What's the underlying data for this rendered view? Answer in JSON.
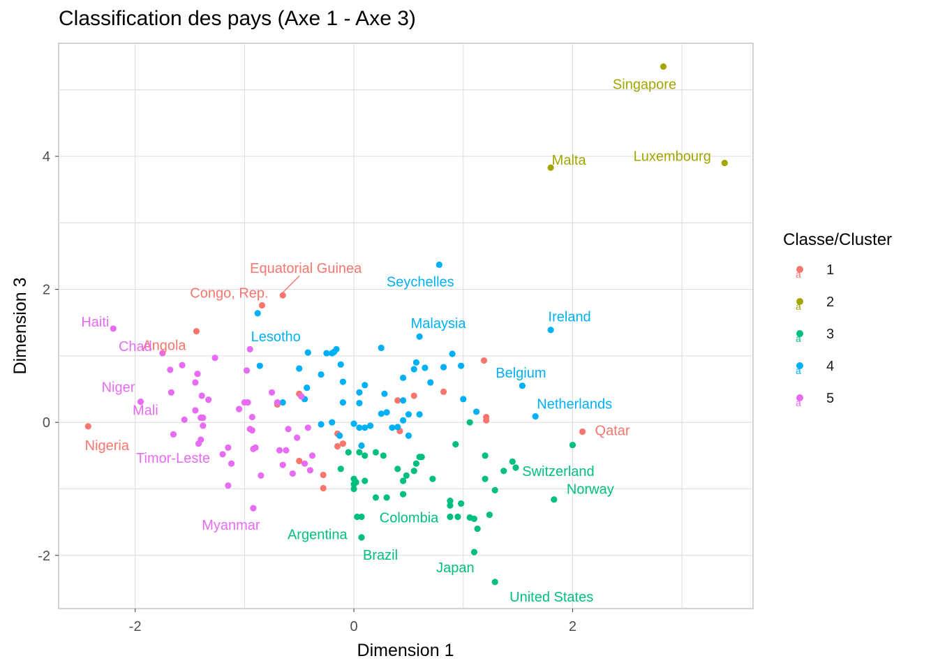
{
  "title": "Classification des pays (Axe 1 - Axe 3)",
  "chart_data": {
    "type": "scatter",
    "xlabel": "Dimension 1",
    "ylabel": "Dimension 3",
    "xlim": [
      -2.7,
      3.65
    ],
    "ylim": [
      -2.8,
      5.7
    ],
    "x_ticks": [
      -2,
      0,
      2
    ],
    "y_ticks": [
      -2,
      0,
      2,
      4
    ],
    "grid": true,
    "legend": {
      "title": "Classe/Cluster",
      "position": "right",
      "entries": [
        {
          "label": "1",
          "color": "#F8766D"
        },
        {
          "label": "2",
          "color": "#A3A500"
        },
        {
          "label": "3",
          "color": "#00BF7D"
        },
        {
          "label": "4",
          "color": "#00B0F6"
        },
        {
          "label": "5",
          "color": "#E76BF3"
        }
      ]
    },
    "series": [
      {
        "name": "1",
        "color": "#F8766D",
        "points": [
          [
            -2.43,
            -0.06
          ],
          [
            -1.44,
            1.37
          ],
          [
            -0.84,
            1.76
          ],
          [
            -0.65,
            1.91
          ],
          [
            -0.7,
            0.27
          ],
          [
            -0.5,
            0.43
          ],
          [
            -0.5,
            -0.58
          ],
          [
            -0.28,
            -0.79
          ],
          [
            -0.28,
            -0.99
          ],
          [
            -0.15,
            -0.17
          ],
          [
            -0.1,
            -0.32
          ],
          [
            -0.15,
            -0.36
          ],
          [
            0.4,
            0.33
          ],
          [
            0.42,
            -0.13
          ],
          [
            0.55,
            0.4
          ],
          [
            0.82,
            0.46
          ],
          [
            1.19,
            0.93
          ],
          [
            1.21,
            0.08
          ],
          [
            1.21,
            0.03
          ],
          [
            2.09,
            -0.14
          ]
        ]
      },
      {
        "name": "2",
        "color": "#A3A500",
        "points": [
          [
            2.83,
            5.35
          ],
          [
            1.8,
            3.83
          ],
          [
            3.39,
            3.9
          ]
        ]
      },
      {
        "name": "3",
        "color": "#00BF7D",
        "points": [
          [
            -0.05,
            -0.45
          ],
          [
            0.05,
            -0.45
          ],
          [
            -0.12,
            -0.7
          ],
          [
            0.0,
            -0.85
          ],
          [
            0.0,
            -0.93
          ],
          [
            0.02,
            -0.9
          ],
          [
            0.1,
            -0.88
          ],
          [
            0.1,
            -0.5
          ],
          [
            0.2,
            -0.45
          ],
          [
            0.27,
            -0.5
          ],
          [
            0.2,
            -1.13
          ],
          [
            0.3,
            -1.13
          ],
          [
            0.03,
            -1.42
          ],
          [
            0.07,
            -1.42
          ],
          [
            0.07,
            -1.73
          ],
          [
            0.0,
            -1.0
          ],
          [
            0.4,
            -0.7
          ],
          [
            0.45,
            -0.88
          ],
          [
            0.48,
            -0.8
          ],
          [
            0.45,
            -1.08
          ],
          [
            0.55,
            -0.73
          ],
          [
            0.57,
            -0.62
          ],
          [
            0.62,
            -0.52
          ],
          [
            0.6,
            -0.52
          ],
          [
            0.72,
            -0.85
          ],
          [
            0.93,
            -0.33
          ],
          [
            1.06,
            0.0
          ],
          [
            1.2,
            -0.5
          ],
          [
            1.2,
            -0.85
          ],
          [
            1.29,
            -1.02
          ],
          [
            1.37,
            -0.73
          ],
          [
            1.45,
            -0.59
          ],
          [
            1.48,
            -0.68
          ],
          [
            0.88,
            -1.18
          ],
          [
            0.88,
            -1.25
          ],
          [
            0.88,
            -1.42
          ],
          [
            0.95,
            -1.42
          ],
          [
            0.98,
            -1.22
          ],
          [
            1.06,
            -1.43
          ],
          [
            1.1,
            -1.45
          ],
          [
            1.13,
            -1.6
          ],
          [
            1.24,
            -1.39
          ],
          [
            1.1,
            -1.95
          ],
          [
            1.29,
            -2.4
          ],
          [
            1.83,
            -1.16
          ],
          [
            2.0,
            -0.34
          ]
        ]
      },
      {
        "name": "4",
        "color": "#00B0F6",
        "points": [
          [
            -0.88,
            1.64
          ],
          [
            -0.86,
            0.85
          ],
          [
            -0.65,
            0.3
          ],
          [
            -0.5,
            0.81
          ],
          [
            -0.42,
            1.05
          ],
          [
            -0.43,
            0.52
          ],
          [
            -0.45,
            0.35
          ],
          [
            -0.3,
            0.72
          ],
          [
            -0.25,
            1.04
          ],
          [
            -0.2,
            1.04
          ],
          [
            -0.16,
            1.1
          ],
          [
            -0.18,
            1.06
          ],
          [
            -0.12,
            0.87
          ],
          [
            -0.1,
            0.61
          ],
          [
            -0.1,
            0.3
          ],
          [
            -0.2,
            0.0
          ],
          [
            -0.3,
            -0.03
          ],
          [
            -0.13,
            -0.2
          ],
          [
            0.0,
            -0.02
          ],
          [
            0.05,
            -0.08
          ],
          [
            0.1,
            -0.08
          ],
          [
            0.05,
            0.29
          ],
          [
            0.05,
            0.45
          ],
          [
            0.1,
            0.56
          ],
          [
            0.07,
            -0.35
          ],
          [
            0.15,
            -0.05
          ],
          [
            0.25,
            1.12
          ],
          [
            0.25,
            0.13
          ],
          [
            0.3,
            0.15
          ],
          [
            0.28,
            0.43
          ],
          [
            0.35,
            -0.08
          ],
          [
            0.4,
            -0.07
          ],
          [
            0.45,
            0.03
          ],
          [
            0.45,
            0.33
          ],
          [
            0.45,
            0.67
          ],
          [
            0.5,
            0.12
          ],
          [
            0.5,
            -0.2
          ],
          [
            0.55,
            0.8
          ],
          [
            0.57,
            0.9
          ],
          [
            0.6,
            0.12
          ],
          [
            0.6,
            1.29
          ],
          [
            0.65,
            0.82
          ],
          [
            0.7,
            0.6
          ],
          [
            0.78,
            2.37
          ],
          [
            0.82,
            0.83
          ],
          [
            0.9,
            1.03
          ],
          [
            0.98,
            0.85
          ],
          [
            1.0,
            0.35
          ],
          [
            1.12,
            0.16
          ],
          [
            1.54,
            0.55
          ],
          [
            1.66,
            0.09
          ],
          [
            1.8,
            1.39
          ]
        ]
      },
      {
        "name": "5",
        "color": "#E76BF3",
        "points": [
          [
            -2.2,
            1.41
          ],
          [
            -1.95,
            0.31
          ],
          [
            -1.75,
            1.04
          ],
          [
            -1.68,
            0.79
          ],
          [
            -1.67,
            0.45
          ],
          [
            -1.65,
            -0.18
          ],
          [
            -1.57,
            0.86
          ],
          [
            -1.55,
            0.04
          ],
          [
            -1.45,
            0.6
          ],
          [
            -1.43,
            0.73
          ],
          [
            -1.45,
            0.18
          ],
          [
            -1.38,
            0.07
          ],
          [
            -1.39,
            0.4
          ],
          [
            -1.4,
            0.07
          ],
          [
            -1.38,
            -0.05
          ],
          [
            -1.42,
            -0.32
          ],
          [
            -1.4,
            -0.26
          ],
          [
            -1.33,
            0.34
          ],
          [
            -1.27,
            0.97
          ],
          [
            -1.2,
            -0.48
          ],
          [
            -1.15,
            -0.38
          ],
          [
            -1.12,
            -0.62
          ],
          [
            -1.15,
            -0.95
          ],
          [
            -1.05,
            0.2
          ],
          [
            -1.0,
            0.3
          ],
          [
            -0.97,
            0.3
          ],
          [
            -0.98,
            0.78
          ],
          [
            -0.95,
            1.1
          ],
          [
            -0.93,
            0.08
          ],
          [
            -0.95,
            -0.1
          ],
          [
            -0.93,
            -0.12
          ],
          [
            -0.92,
            -0.4
          ],
          [
            -0.9,
            -0.38
          ],
          [
            -0.92,
            -1.29
          ],
          [
            -0.85,
            -0.8
          ],
          [
            -0.75,
            0.45
          ],
          [
            -0.7,
            0.3
          ],
          [
            -0.68,
            -0.42
          ],
          [
            -0.65,
            -0.64
          ],
          [
            -0.62,
            -0.42
          ],
          [
            -0.6,
            -0.1
          ],
          [
            -0.56,
            -0.77
          ],
          [
            -0.52,
            -0.23
          ],
          [
            -0.48,
            0.39
          ],
          [
            -0.45,
            -0.62
          ],
          [
            -0.42,
            -0.08
          ],
          [
            -0.38,
            -0.5
          ],
          [
            -0.4,
            -0.72
          ]
        ]
      }
    ],
    "annotations": [
      {
        "text": "Singapore",
        "class": "2",
        "x": 2.83,
        "y": 5.35
      },
      {
        "text": "Malta",
        "class": "2",
        "x": 1.8,
        "y": 3.83
      },
      {
        "text": "Luxembourg",
        "class": "2",
        "x": 3.39,
        "y": 3.9
      },
      {
        "text": "Equatorial Guinea",
        "class": "1",
        "x": -0.65,
        "y": 1.91
      },
      {
        "text": "Congo, Rep.",
        "class": "1",
        "x": -0.84,
        "y": 1.76
      },
      {
        "text": "Angola",
        "class": "1",
        "x": -1.44,
        "y": 1.37
      },
      {
        "text": "Nigeria",
        "class": "1",
        "x": -2.43,
        "y": -0.06
      },
      {
        "text": "Qatar",
        "class": "1",
        "x": 2.09,
        "y": -0.14
      },
      {
        "text": "Seychelles",
        "class": "4",
        "x": 0.78,
        "y": 2.37
      },
      {
        "text": "Lesotho",
        "class": "4",
        "x": -0.88,
        "y": 1.64
      },
      {
        "text": "Malaysia",
        "class": "4",
        "x": 0.6,
        "y": 1.29
      },
      {
        "text": "Ireland",
        "class": "4",
        "x": 1.8,
        "y": 1.39
      },
      {
        "text": "Belgium",
        "class": "4",
        "x": 1.54,
        "y": 0.55
      },
      {
        "text": "Netherlands",
        "class": "4",
        "x": 1.66,
        "y": 0.09
      },
      {
        "text": "Haiti",
        "class": "5",
        "x": -2.2,
        "y": 1.41
      },
      {
        "text": "Chad",
        "class": "5",
        "x": -1.75,
        "y": 1.04
      },
      {
        "text": "Niger",
        "class": "5",
        "x": -1.95,
        "y": 0.31
      },
      {
        "text": "Mali",
        "class": "5",
        "x": -1.67,
        "y": 0.45
      },
      {
        "text": "Timor-Leste",
        "class": "5",
        "x": -1.2,
        "y": -0.48
      },
      {
        "text": "Myanmar",
        "class": "5",
        "x": -0.92,
        "y": -1.29
      },
      {
        "text": "Switzerland",
        "class": "3",
        "x": 1.48,
        "y": -0.68
      },
      {
        "text": "Norway",
        "class": "3",
        "x": 1.83,
        "y": -1.16
      },
      {
        "text": "Colombia",
        "class": "3",
        "x": 0.07,
        "y": -1.42
      },
      {
        "text": "Argentina",
        "class": "3",
        "x": 0.03,
        "y": -1.42
      },
      {
        "text": "Brazil",
        "class": "3",
        "x": 0.07,
        "y": -1.73
      },
      {
        "text": "Japan",
        "class": "3",
        "x": 1.1,
        "y": -1.95
      },
      {
        "text": "United States",
        "class": "3",
        "x": 1.29,
        "y": -2.4
      }
    ]
  }
}
